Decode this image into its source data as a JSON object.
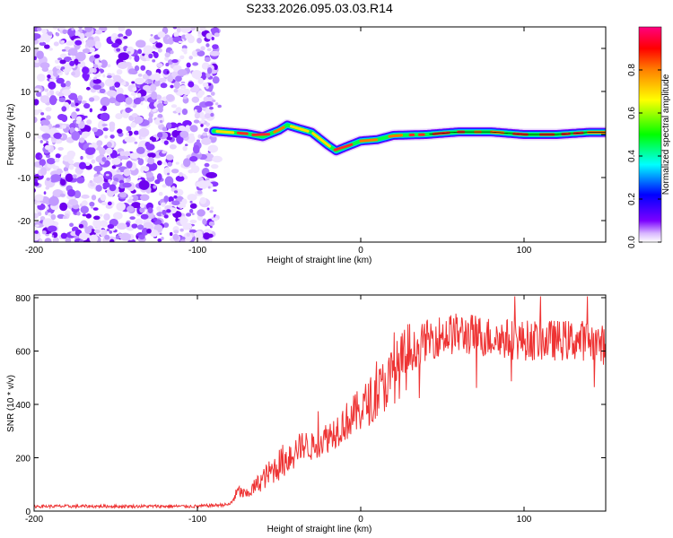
{
  "title": "S233.2026.095.03.03.R14",
  "chart_data": [
    {
      "type": "heatmap",
      "xlabel": "Height of straight line (km)",
      "ylabel": "Frequency (Hz)",
      "xlim": [
        -200,
        150
      ],
      "ylim": [
        -25,
        25
      ],
      "xticks": [
        -200,
        -100,
        0,
        100
      ],
      "xtick_labels": [
        "-200",
        "-100",
        "0",
        "100"
      ],
      "yticks": [
        -20,
        -10,
        0,
        10,
        20
      ],
      "ytick_labels": [
        "-20",
        "-10",
        "0",
        "10",
        "20"
      ],
      "noise_region_x": [
        -200,
        -90
      ],
      "signal_start_x": -90,
      "signal_centerline": [
        {
          "x": -90,
          "y": 0.8
        },
        {
          "x": -80,
          "y": 0.5
        },
        {
          "x": -70,
          "y": 0.2
        },
        {
          "x": -60,
          "y": -0.5
        },
        {
          "x": -50,
          "y": 1.0
        },
        {
          "x": -45,
          "y": 2.2
        },
        {
          "x": -40,
          "y": 1.6
        },
        {
          "x": -30,
          "y": 0.5
        },
        {
          "x": -20,
          "y": -2.5
        },
        {
          "x": -15,
          "y": -3.8
        },
        {
          "x": -10,
          "y": -3.0
        },
        {
          "x": 0,
          "y": -1.5
        },
        {
          "x": 10,
          "y": -1.2
        },
        {
          "x": 20,
          "y": -0.2
        },
        {
          "x": 40,
          "y": 0.0
        },
        {
          "x": 60,
          "y": 0.6
        },
        {
          "x": 80,
          "y": 0.6
        },
        {
          "x": 100,
          "y": 0.0
        },
        {
          "x": 120,
          "y": 0.0
        },
        {
          "x": 140,
          "y": 0.5
        },
        {
          "x": 150,
          "y": 0.5
        }
      ],
      "colorbar": {
        "label": "Normalized spectral amplitude",
        "range": [
          0,
          1
        ],
        "ticks": [
          0,
          0.2,
          0.4,
          0.6,
          0.8
        ],
        "tick_labels": [
          "0.0",
          "0.2",
          "0.4",
          "0.6",
          "0.8"
        ],
        "colors": [
          "#ffffff",
          "#7b00ff",
          "#0000ff",
          "#00ffff",
          "#00ff00",
          "#ffff00",
          "#ff8000",
          "#ff0000",
          "#ff0080"
        ]
      }
    },
    {
      "type": "line",
      "xlabel": "Height of straight line (km)",
      "ylabel": "SNR (10 * v/v)",
      "xlim": [
        -200,
        150
      ],
      "ylim": [
        0,
        810
      ],
      "xticks": [
        -200,
        -100,
        0,
        100
      ],
      "xtick_labels": [
        "-200",
        "-100",
        "0",
        "100"
      ],
      "yticks": [
        0,
        200,
        400,
        600,
        800
      ],
      "ytick_labels": [
        "0",
        "200",
        "400",
        "600",
        "800"
      ],
      "series": [
        {
          "name": "SNR",
          "color": "#ee3333",
          "x": [
            -200,
            -150,
            -100,
            -80,
            -75,
            -70,
            -60,
            -50,
            -45,
            -40,
            -35,
            -30,
            -20,
            -10,
            0,
            10,
            20,
            30,
            40,
            50,
            60,
            70,
            80,
            100,
            120,
            140,
            150
          ],
          "y": [
            18,
            18,
            18,
            25,
            75,
            60,
            120,
            175,
            200,
            230,
            250,
            240,
            280,
            330,
            380,
            440,
            510,
            590,
            640,
            660,
            665,
            660,
            650,
            640,
            640,
            640,
            620
          ]
        }
      ]
    }
  ]
}
